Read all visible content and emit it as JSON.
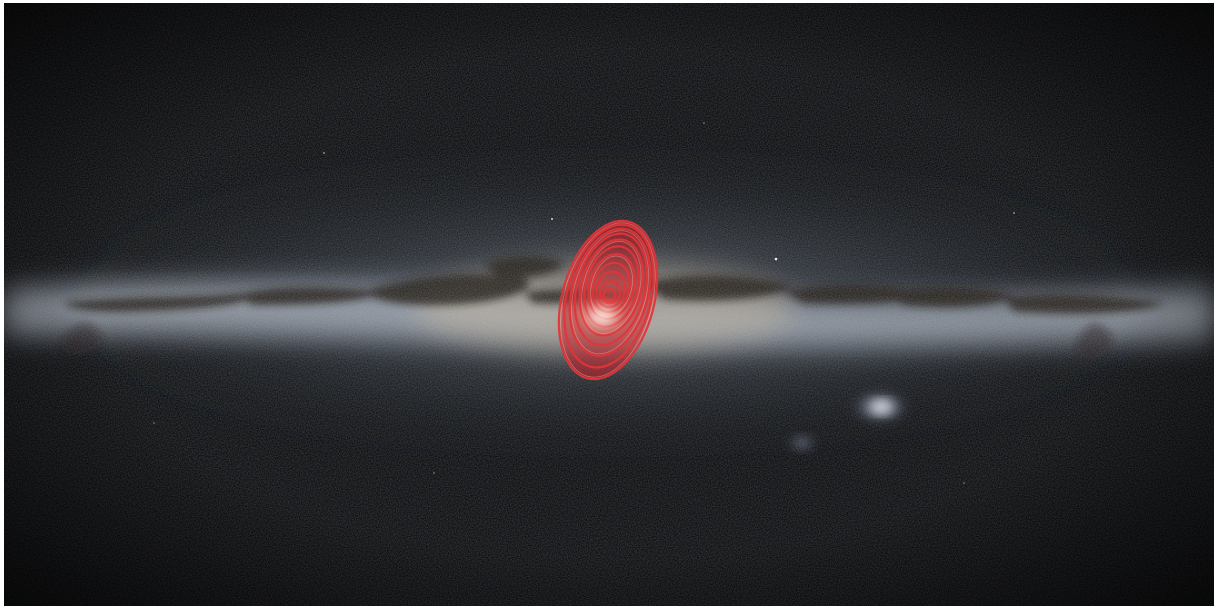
{
  "image": {
    "subject": "milky-way-all-sky-map",
    "colors": {
      "sky_background": "#030405",
      "galactic_band": "#aeb7c4",
      "galactic_core": "#fff4e6",
      "dust_lanes": "#3a2f22",
      "overlay_contours": "#c8202a",
      "overlay_fill": "#d0282e",
      "magellanic_clouds": "#cfd9ef"
    },
    "overlay": {
      "shape": "concentric-tilted-ellipses",
      "ring_count": 11
    },
    "features": [
      "galactic-plane",
      "galactic-center",
      "large-magellanic-cloud",
      "small-magellanic-cloud",
      "contour-overlay"
    ]
  }
}
